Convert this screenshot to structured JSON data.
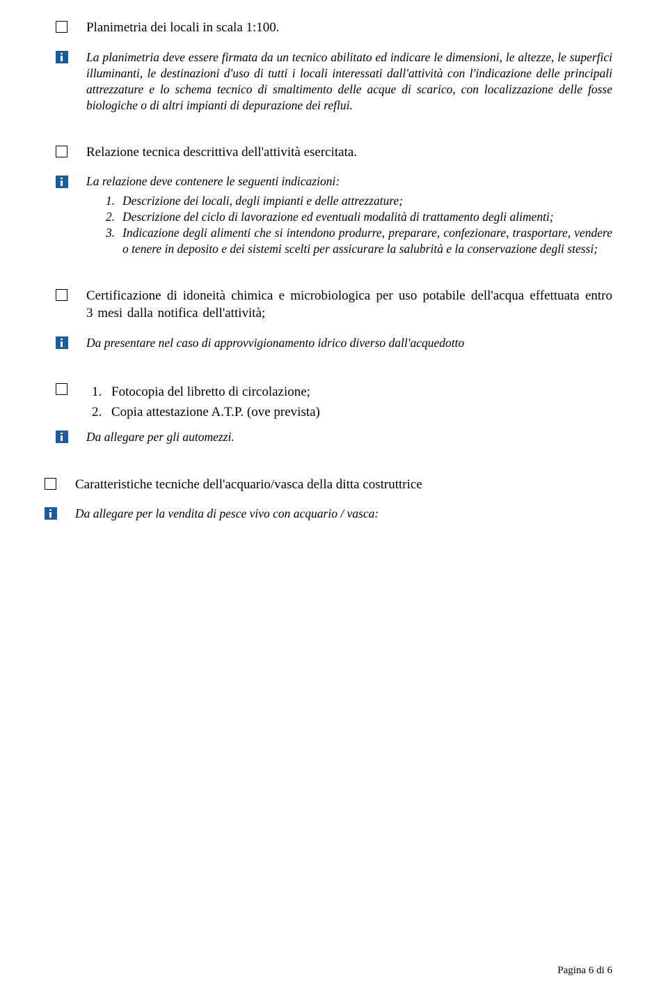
{
  "sections": {
    "s1": {
      "title": "Planimetria dei locali in scala 1:100.",
      "note": "La planimetria deve essere firmata da un tecnico abilitato ed indicare le dimensioni, le altezze, le superfici illuminanti, le destinazioni d'uso di tutti i locali interessati dall'attività con l'indicazione delle principali attrezzature e lo schema tecnico di smaltimento delle acque di scarico, con localizzazione delle fosse biologiche o di altri impianti di depurazione dei reflui."
    },
    "s2": {
      "title": "Relazione tecnica descrittiva dell'attività esercitata.",
      "intro": "La relazione deve contenere le seguenti indicazioni:",
      "items": [
        "Descrizione dei locali, degli impianti e delle attrezzature;",
        "Descrizione del  ciclo di lavorazione ed eventuali modalità di trattamento degli alimenti;",
        "Indicazione degli alimenti che si intendono produrre, preparare, confezionare, trasportare, vendere o tenere in deposito e dei sistemi scelti per assicurare la salubrità e la conservazione degli stessi;"
      ]
    },
    "s3": {
      "title": "Certificazione di idoneità chimica e microbiologica per uso potabile dell'acqua effettuata entro 3 mesi dalla notifica dell'attività;",
      "note": "Da presentare nel caso di approvvigionamento idrico diverso dall'acquedotto"
    },
    "s4": {
      "items": [
        "Fotocopia del libretto di circolazione;",
        "Copia attestazione A.T.P. (ove prevista)"
      ],
      "note": "Da allegare per gli automezzi."
    },
    "s5": {
      "title": "Caratteristiche tecniche dell'acquario/vasca della ditta costruttrice",
      "note": "Da allegare per la vendita di pesce vivo con acquario / vasca:"
    }
  },
  "footer": "Pagina  6 di 6"
}
